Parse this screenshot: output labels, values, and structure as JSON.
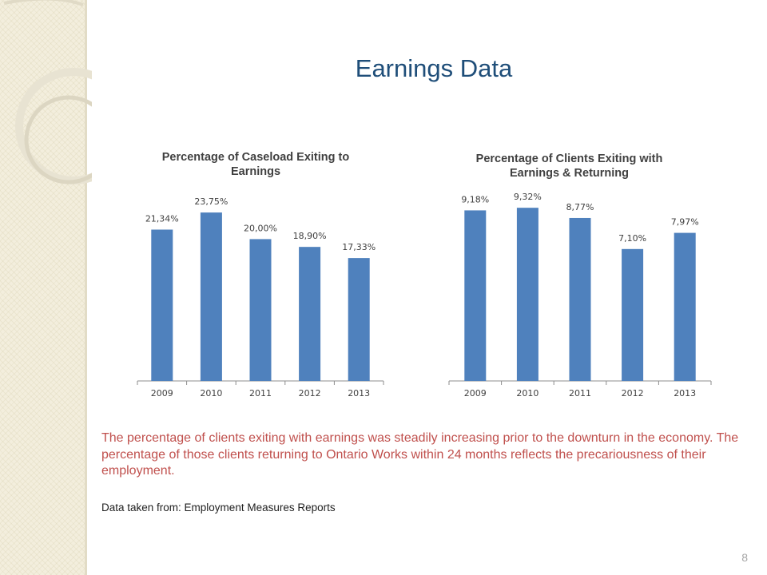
{
  "slide": {
    "title": "Earnings Data",
    "caption": "The percentage of clients exiting with earnings was steadily increasing prior to the  downturn in the economy. The percentage of  those clients returning to Ontario Works within 24 months reflects the precariousness of their employment.",
    "source": "Data taken from: Employment Measures Reports",
    "page_number": "8"
  },
  "colors": {
    "bar": "#4f81bd",
    "title": "#1f4e79",
    "caption": "#c0504d"
  },
  "chart_data": [
    {
      "type": "bar",
      "title": "Percentage of Caseload Exiting to Earnings",
      "categories": [
        "2009",
        "2010",
        "2011",
        "2012",
        "2013"
      ],
      "values": [
        21.34,
        23.75,
        20.0,
        18.9,
        17.33
      ],
      "data_labels": [
        "21,34%",
        "23,75%",
        "20,00%",
        "18,90%",
        "17,33%"
      ],
      "ylim": [
        0,
        25
      ],
      "grid": false
    },
    {
      "type": "bar",
      "title": "Percentage of Clients Exiting with Earnings & Returning",
      "categories": [
        "2009",
        "2010",
        "2011",
        "2012",
        "2013"
      ],
      "values": [
        9.18,
        9.32,
        8.77,
        7.1,
        7.97
      ],
      "data_labels": [
        "9,18%",
        "9,32%",
        "8,77%",
        "7,10%",
        "7,97%"
      ],
      "ylim": [
        0,
        9.8
      ],
      "grid": false
    }
  ]
}
